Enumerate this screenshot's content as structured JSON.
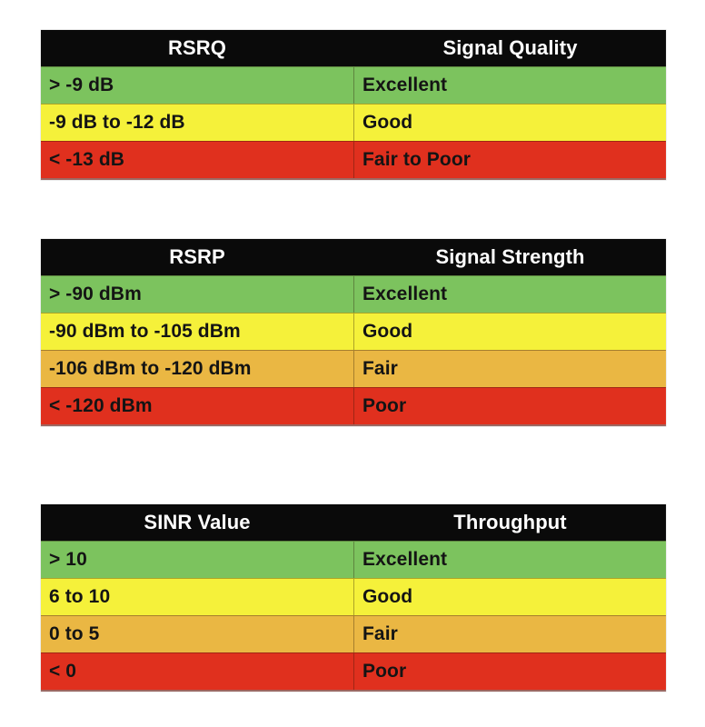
{
  "colors": {
    "header_bg": "#0a0a0a",
    "header_text": "#ffffff",
    "row_text": "#141414",
    "excellent": "#7cc35e",
    "good": "#f5f13a",
    "fair": "#eab743",
    "poor": "#e0301e"
  },
  "tables": [
    {
      "id": "rsrq",
      "headers": [
        "RSRQ",
        "Signal Quality"
      ],
      "rows": [
        {
          "value": "> -9 dB",
          "label": "Excellent",
          "level": "excellent"
        },
        {
          "value": "-9 dB to -12 dB",
          "label": "Good",
          "level": "good"
        },
        {
          "value": "< -13 dB",
          "label": "Fair to Poor",
          "level": "poor"
        }
      ]
    },
    {
      "id": "rsrp",
      "headers": [
        "RSRP",
        "Signal Strength"
      ],
      "rows": [
        {
          "value": "> -90 dBm",
          "label": "Excellent",
          "level": "excellent"
        },
        {
          "value": "-90 dBm to -105 dBm",
          "label": "Good",
          "level": "good"
        },
        {
          "value": "-106 dBm to -120 dBm",
          "label": "Fair",
          "level": "fair"
        },
        {
          "value": "< -120 dBm",
          "label": "Poor",
          "level": "poor"
        }
      ]
    },
    {
      "id": "sinr",
      "headers": [
        "SINR Value",
        "Throughput"
      ],
      "rows": [
        {
          "value": "> 10",
          "label": "Excellent",
          "level": "excellent"
        },
        {
          "value": "6 to 10",
          "label": "Good",
          "level": "good"
        },
        {
          "value": "0 to 5",
          "label": "Fair",
          "level": "fair"
        },
        {
          "value": "< 0",
          "label": "Poor",
          "level": "poor"
        }
      ]
    }
  ]
}
